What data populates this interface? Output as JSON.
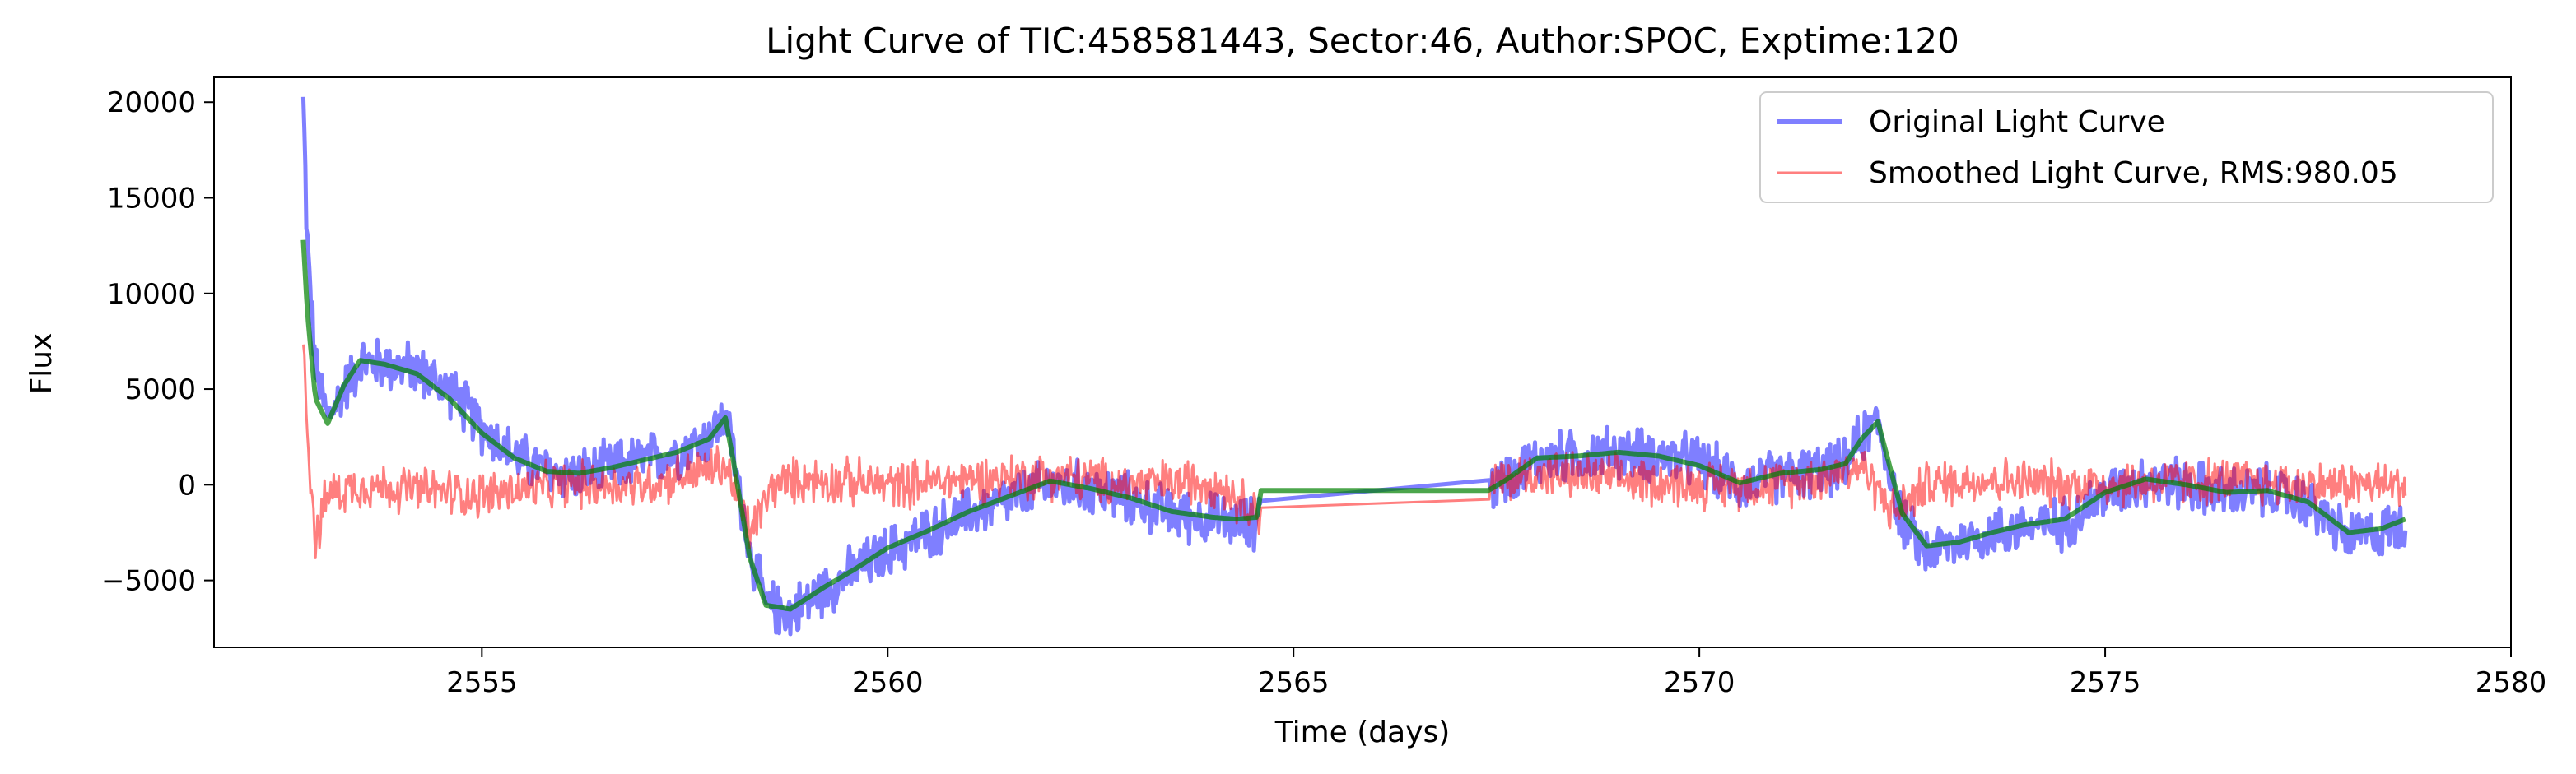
{
  "chart_data": {
    "type": "line",
    "title": "Light Curve of TIC:458581443, Sector:46, Author:SPOC, Exptime:120",
    "xlabel": "Time (days)",
    "ylabel": "Flux",
    "xlim": [
      2551.7,
      2580
    ],
    "ylim": [
      -8500,
      21300
    ],
    "xticks": [
      2555,
      2560,
      2565,
      2570,
      2575,
      2580
    ],
    "yticks": [
      -5000,
      0,
      5000,
      10000,
      15000,
      20000
    ],
    "xtick_labels": [
      "2555",
      "2560",
      "2565",
      "2570",
      "2575",
      "2580"
    ],
    "ytick_labels": [
      "−5000",
      "0",
      "5000",
      "10000",
      "15000",
      "20000"
    ],
    "grid": false,
    "legend_position": "top-right",
    "series": [
      {
        "name": "Original Light Curve",
        "color": "#0000ff",
        "opacity": 0.5,
        "noise": 1100,
        "x": [
          2552.8,
          2552.85,
          2552.95,
          2553.1,
          2553.3,
          2553.5,
          2553.8,
          2554.2,
          2554.6,
          2555.0,
          2555.4,
          2555.8,
          2556.2,
          2556.6,
          2557.0,
          2557.4,
          2557.8,
          2558.0,
          2558.1,
          2558.3,
          2558.5,
          2558.8,
          2559.2,
          2559.6,
          2560.0,
          2560.5,
          2561.0,
          2561.5,
          2562.0,
          2562.5,
          2563.0,
          2563.5,
          2564.0,
          2564.3,
          2564.55,
          2564.6,
          2567.4,
          2567.6,
          2568.0,
          2568.5,
          2569.0,
          2569.5,
          2570.0,
          2570.5,
          2571.0,
          2571.5,
          2571.8,
          2572.0,
          2572.2,
          2572.5,
          2572.8,
          2573.2,
          2573.6,
          2574.0,
          2574.5,
          2575.0,
          2575.5,
          2576.0,
          2576.5,
          2577.0,
          2577.5,
          2578.0,
          2578.4,
          2578.7
        ],
        "y": [
          20000,
          12500,
          6000,
          3500,
          5000,
          6400,
          6300,
          6000,
          5000,
          3000,
          1500,
          700,
          500,
          900,
          1300,
          1700,
          2500,
          3500,
          1500,
          -3500,
          -6300,
          -6700,
          -5500,
          -4500,
          -3500,
          -2500,
          -1500,
          -800,
          0,
          -200,
          -800,
          -1500,
          -1800,
          -2000,
          -2000,
          -300,
          -300,
          300,
          1300,
          1500,
          1700,
          1500,
          1200,
          0,
          500,
          700,
          1000,
          2500,
          3300,
          -2000,
          -3500,
          -3000,
          -2500,
          -2200,
          -2000,
          -500,
          300,
          0,
          -500,
          -300,
          -1000,
          -2800,
          -2500,
          -2000
        ]
      },
      {
        "name": "Smoothed Light Curve, RMS:980.05",
        "color": "#ff0000",
        "opacity": 0.5,
        "noise": 980,
        "x": [
          2552.8,
          2552.85,
          2552.95,
          2553.1,
          2553.5,
          2554.0,
          2555.0,
          2556.0,
          2557.0,
          2558.0,
          2558.3,
          2558.6,
          2559.0,
          2560.0,
          2561.0,
          2562.0,
          2563.0,
          2564.0,
          2564.6,
          2567.4,
          2568.0,
          2569.0,
          2570.0,
          2571.0,
          2572.0,
          2572.4,
          2572.8,
          2573.5,
          2574.5,
          2575.5,
          2576.5,
          2577.5,
          2578.7
        ],
        "y": [
          7500,
          3000,
          -3000,
          -500,
          0,
          -200,
          -500,
          0,
          0,
          1000,
          -2500,
          0,
          300,
          0,
          300,
          500,
          0,
          200,
          -1500,
          0,
          600,
          300,
          0,
          0,
          1000,
          -1500,
          0,
          300,
          0,
          100,
          200,
          0,
          0
        ]
      },
      {
        "name": "",
        "color": "#008000",
        "opacity": 0.7,
        "noise": 0,
        "x": [
          2552.8,
          2552.85,
          2552.95,
          2553.1,
          2553.3,
          2553.5,
          2553.8,
          2554.2,
          2554.6,
          2555.0,
          2555.4,
          2555.8,
          2556.2,
          2556.6,
          2557.0,
          2557.4,
          2557.8,
          2558.0,
          2558.1,
          2558.3,
          2558.5,
          2558.8,
          2559.2,
          2559.6,
          2560.0,
          2560.5,
          2561.0,
          2561.5,
          2562.0,
          2562.5,
          2563.0,
          2563.5,
          2564.0,
          2564.3,
          2564.55,
          2564.6,
          2567.4,
          2567.6,
          2568.0,
          2568.5,
          2569.0,
          2569.5,
          2570.0,
          2570.5,
          2571.0,
          2571.5,
          2571.8,
          2572.0,
          2572.2,
          2572.5,
          2572.8,
          2573.2,
          2573.6,
          2574.0,
          2574.5,
          2575.0,
          2575.5,
          2576.0,
          2576.5,
          2577.0,
          2577.5,
          2578.0,
          2578.4,
          2578.7
        ],
        "y": [
          12800,
          9000,
          4500,
          3200,
          5200,
          6500,
          6300,
          5800,
          4500,
          2700,
          1400,
          700,
          600,
          900,
          1300,
          1700,
          2400,
          3500,
          1200,
          -3800,
          -6300,
          -6500,
          -5400,
          -4400,
          -3300,
          -2400,
          -1400,
          -600,
          200,
          -200,
          -700,
          -1400,
          -1700,
          -1800,
          -1700,
          -300,
          -300,
          200,
          1400,
          1500,
          1700,
          1500,
          1000,
          100,
          600,
          800,
          1100,
          2400,
          3300,
          -1500,
          -3200,
          -3000,
          -2500,
          -2100,
          -1800,
          -400,
          300,
          0,
          -400,
          -300,
          -900,
          -2500,
          -2300,
          -1800
        ]
      }
    ]
  }
}
